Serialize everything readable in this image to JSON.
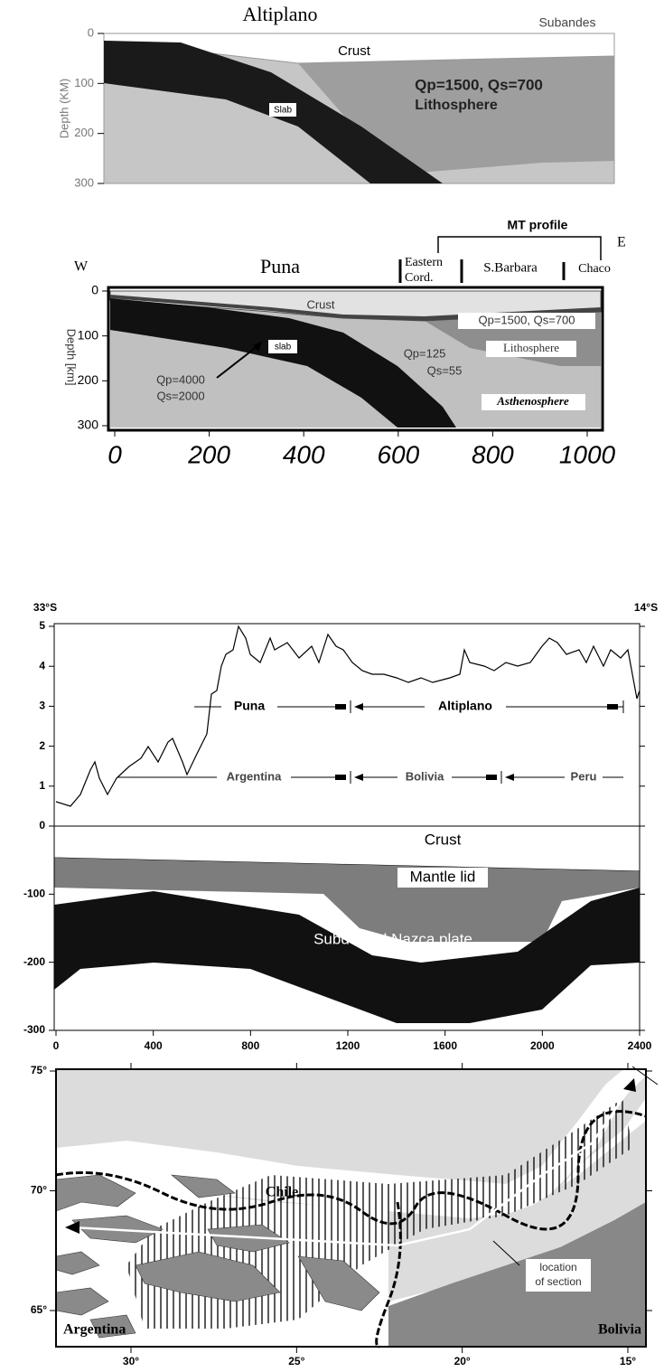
{
  "top_panel": {
    "title": "Altiplano",
    "right_label": "Subandes",
    "y_axis_label": "Depth (KM)",
    "yticks": [
      0,
      100,
      200,
      300
    ],
    "crust": "Crust",
    "slab": "Slab",
    "q_values": "Qp=1500, Qs=700",
    "lithosphere": "Lithosphere"
  },
  "middle_panel": {
    "title": "Puna",
    "west": "W",
    "east": "E",
    "profile": "MT profile",
    "eastern_cord": [
      "Eastern",
      "Cord."
    ],
    "sbarbara": "S.Barbara",
    "chaco": "Chaco",
    "crust": "Crust",
    "slab": "slab",
    "lith_q": "Qp=1500, Qs=700",
    "lithosphere": "Lithosphere",
    "asth_qp": "Qp=125",
    "asth_qs": "Qs=55",
    "slab_qp": "Qp=4000",
    "slab_qs": "Qs=2000",
    "asthenosphere": "Asthenosphere",
    "y_axis_label": "Depth [km]",
    "yticks": [
      0,
      100,
      200,
      300
    ],
    "xticks": [
      0,
      200,
      400,
      600,
      800,
      1000
    ]
  },
  "profile_panel": {
    "left_label": "33°S",
    "right_label": "14°S",
    "elevation_ticks": [
      5,
      4,
      3,
      2,
      1,
      0
    ],
    "depth_ticks": [
      -100,
      -200,
      -300
    ],
    "xticks": [
      0,
      400,
      800,
      1200,
      1600,
      2000,
      2400
    ],
    "provinces": [
      "Puna",
      "Altiplano"
    ],
    "countries": [
      "Argentina",
      "Bolivia",
      "Peru"
    ],
    "crust": "Crust",
    "mantle_lid": "Mantle lid",
    "slab": "Subducted Nazca plate"
  },
  "map_panel": {
    "lat_ticks": [
      "75°",
      "70°",
      "65°"
    ],
    "lon_ticks": [
      "30°",
      "25°",
      "20°",
      "15°"
    ],
    "chile": "Chile",
    "argentina": "Argentina",
    "bolivia": "Bolivia",
    "section": [
      "location",
      "of section"
    ]
  }
}
